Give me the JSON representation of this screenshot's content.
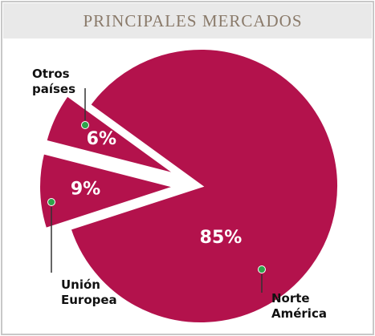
{
  "chart_data": {
    "type": "pie",
    "title": "PRINCIPALES MERCADOS",
    "categories": [
      "Otros países",
      "Unión Europea",
      "Norte América"
    ],
    "values": [
      6,
      9,
      85
    ],
    "value_labels": [
      "6%",
      "9%",
      "85%"
    ],
    "color": "#b3124c"
  }
}
